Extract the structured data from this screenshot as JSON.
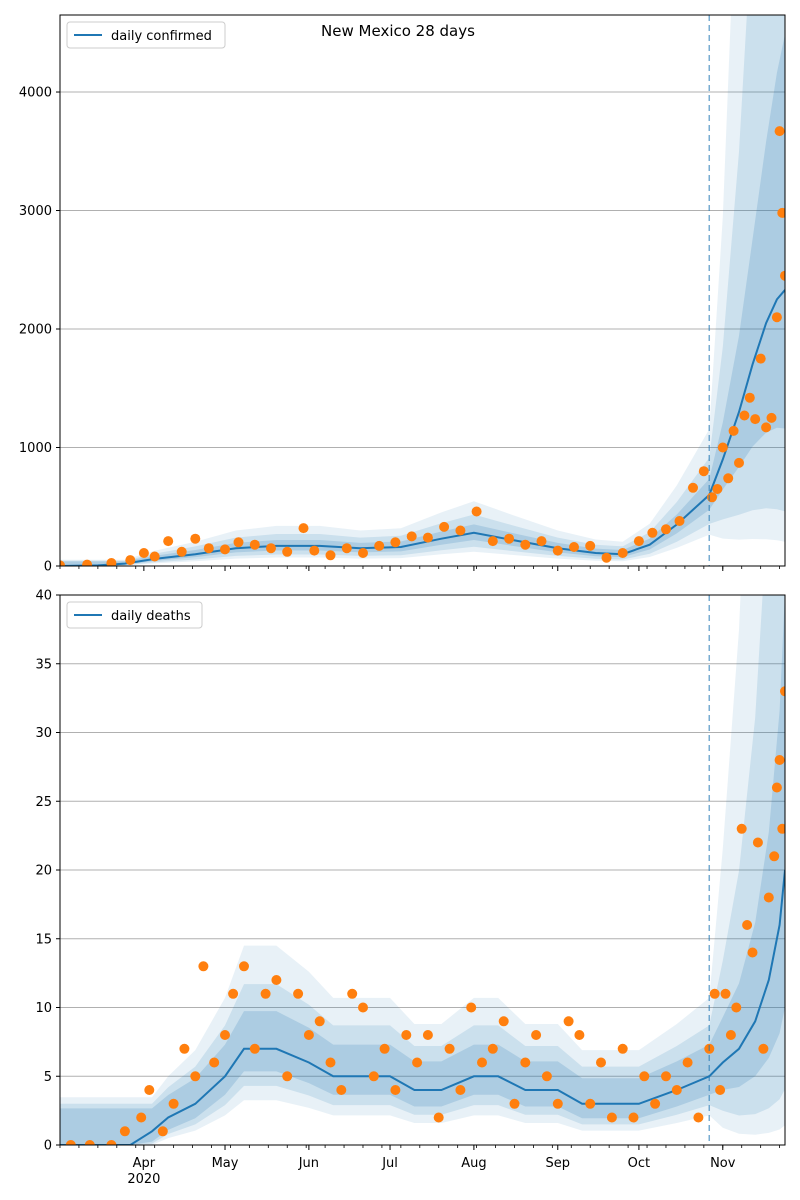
{
  "figure": {
    "title": "New Mexico 28 days"
  },
  "colors": {
    "model": "#1f77b4",
    "observed": "#ff7f0e",
    "band": "#1f77b4",
    "grid": "#b0b0b0",
    "cutoff": "#1f77b4"
  },
  "chart_data": [
    {
      "type": "line",
      "id": "confirmed",
      "title": "New Mexico 28 days",
      "legend": [
        "daily confirmed"
      ],
      "legend_position": "top-left",
      "xlabel": "",
      "ylabel": "",
      "ylim": [
        0,
        4650
      ],
      "yticks": [
        0,
        1000,
        2000,
        3000,
        4000
      ],
      "grid": "y",
      "x_start": "2020-03-01",
      "x_end": "2020-11-24",
      "forecast_cutoff": "2020-10-27",
      "series": [
        {
          "name": "daily confirmed",
          "role": "model",
          "x": [
            "2020-03-01",
            "2020-03-15",
            "2020-03-25",
            "2020-04-05",
            "2020-04-20",
            "2020-05-05",
            "2020-05-20",
            "2020-06-05",
            "2020-06-20",
            "2020-07-05",
            "2020-07-20",
            "2020-08-01",
            "2020-08-15",
            "2020-09-01",
            "2020-09-15",
            "2020-09-25",
            "2020-10-05",
            "2020-10-15",
            "2020-10-27",
            "2020-11-01",
            "2020-11-07",
            "2020-11-12",
            "2020-11-17",
            "2020-11-21",
            "2020-11-24"
          ],
          "values": [
            0,
            5,
            20,
            60,
            100,
            150,
            170,
            170,
            150,
            160,
            230,
            280,
            220,
            150,
            110,
            100,
            180,
            350,
            600,
            900,
            1300,
            1700,
            2050,
            2250,
            2330
          ]
        },
        {
          "role": "observed",
          "x": [
            "2020-03-01",
            "2020-03-11",
            "2020-03-20",
            "2020-03-27",
            "2020-04-01",
            "2020-04-05",
            "2020-04-10",
            "2020-04-15",
            "2020-04-20",
            "2020-04-25",
            "2020-05-01",
            "2020-05-06",
            "2020-05-12",
            "2020-05-18",
            "2020-05-24",
            "2020-05-30",
            "2020-06-03",
            "2020-06-09",
            "2020-06-15",
            "2020-06-21",
            "2020-06-27",
            "2020-07-03",
            "2020-07-09",
            "2020-07-15",
            "2020-07-21",
            "2020-07-27",
            "2020-08-02",
            "2020-08-08",
            "2020-08-14",
            "2020-08-20",
            "2020-08-26",
            "2020-09-01",
            "2020-09-07",
            "2020-09-13",
            "2020-09-19",
            "2020-09-25",
            "2020-10-01",
            "2020-10-06",
            "2020-10-11",
            "2020-10-16",
            "2020-10-21",
            "2020-10-25",
            "2020-10-28",
            "2020-10-30",
            "2020-11-01",
            "2020-11-03",
            "2020-11-05",
            "2020-11-07",
            "2020-11-09",
            "2020-11-11",
            "2020-11-13",
            "2020-11-15",
            "2020-11-17",
            "2020-11-19",
            "2020-11-21",
            "2020-11-22",
            "2020-11-23",
            "2020-11-24"
          ],
          "values": [
            5,
            12,
            25,
            50,
            110,
            80,
            210,
            120,
            230,
            150,
            140,
            200,
            180,
            150,
            120,
            320,
            130,
            90,
            150,
            110,
            170,
            200,
            250,
            240,
            330,
            300,
            460,
            210,
            230,
            180,
            210,
            130,
            160,
            170,
            70,
            110,
            210,
            280,
            310,
            380,
            660,
            800,
            580,
            650,
            1000,
            740,
            1140,
            870,
            1270,
            1420,
            1240,
            1750,
            1170,
            1250,
            2100,
            3670,
            2980,
            2450
          ]
        }
      ]
    },
    {
      "type": "line",
      "id": "deaths",
      "legend": [
        "daily deaths"
      ],
      "legend_position": "top-left",
      "xlabel": "",
      "ylabel": "",
      "ylim": [
        0,
        40
      ],
      "yticks": [
        0,
        5,
        10,
        15,
        20,
        25,
        30,
        35,
        40
      ],
      "grid": "y",
      "x_start": "2020-03-01",
      "x_end": "2020-11-24",
      "forecast_cutoff": "2020-10-27",
      "xticks": [
        "Apr",
        "May",
        "Jun",
        "Jul",
        "Aug",
        "Sep",
        "Oct",
        "Nov"
      ],
      "xtick_dates": [
        "2020-04-01",
        "2020-05-01",
        "2020-06-01",
        "2020-07-01",
        "2020-08-01",
        "2020-09-01",
        "2020-10-01",
        "2020-11-01"
      ],
      "x_year_label": "2020",
      "series": [
        {
          "name": "daily deaths",
          "role": "model",
          "x": [
            "2020-03-01",
            "2020-03-27",
            "2020-04-04",
            "2020-04-10",
            "2020-04-20",
            "2020-05-01",
            "2020-05-08",
            "2020-05-20",
            "2020-06-01",
            "2020-06-10",
            "2020-06-20",
            "2020-07-01",
            "2020-07-10",
            "2020-07-20",
            "2020-08-01",
            "2020-08-10",
            "2020-08-20",
            "2020-09-01",
            "2020-09-10",
            "2020-09-20",
            "2020-10-01",
            "2020-10-15",
            "2020-10-27",
            "2020-11-01",
            "2020-11-07",
            "2020-11-13",
            "2020-11-18",
            "2020-11-22",
            "2020-11-24"
          ],
          "values": [
            0,
            0,
            1,
            2,
            3,
            5,
            7,
            7,
            6,
            5,
            5,
            5,
            4,
            4,
            5,
            5,
            4,
            4,
            3,
            3,
            3,
            4,
            5,
            6,
            7,
            9,
            12,
            16,
            20
          ]
        },
        {
          "role": "observed",
          "x": [
            "2020-03-05",
            "2020-03-12",
            "2020-03-20",
            "2020-03-25",
            "2020-03-31",
            "2020-04-03",
            "2020-04-08",
            "2020-04-12",
            "2020-04-16",
            "2020-04-20",
            "2020-04-23",
            "2020-04-27",
            "2020-05-01",
            "2020-05-04",
            "2020-05-08",
            "2020-05-12",
            "2020-05-16",
            "2020-05-20",
            "2020-05-24",
            "2020-05-28",
            "2020-06-01",
            "2020-06-05",
            "2020-06-09",
            "2020-06-13",
            "2020-06-17",
            "2020-06-21",
            "2020-06-25",
            "2020-06-29",
            "2020-07-03",
            "2020-07-07",
            "2020-07-11",
            "2020-07-15",
            "2020-07-19",
            "2020-07-23",
            "2020-07-27",
            "2020-07-31",
            "2020-08-04",
            "2020-08-08",
            "2020-08-12",
            "2020-08-16",
            "2020-08-20",
            "2020-08-24",
            "2020-08-28",
            "2020-09-01",
            "2020-09-05",
            "2020-09-09",
            "2020-09-13",
            "2020-09-17",
            "2020-09-21",
            "2020-09-25",
            "2020-09-29",
            "2020-10-03",
            "2020-10-07",
            "2020-10-11",
            "2020-10-15",
            "2020-10-19",
            "2020-10-23",
            "2020-10-27",
            "2020-10-29",
            "2020-10-31",
            "2020-11-02",
            "2020-11-04",
            "2020-11-06",
            "2020-11-08",
            "2020-11-10",
            "2020-11-12",
            "2020-11-14",
            "2020-11-16",
            "2020-11-18",
            "2020-11-20",
            "2020-11-21",
            "2020-11-22",
            "2020-11-23",
            "2020-11-24"
          ],
          "values": [
            0,
            0,
            0,
            1,
            2,
            4,
            1,
            3,
            7,
            5,
            13,
            6,
            8,
            11,
            13,
            7,
            11,
            12,
            5,
            11,
            8,
            9,
            6,
            4,
            11,
            10,
            5,
            7,
            4,
            8,
            6,
            8,
            2,
            7,
            4,
            10,
            6,
            7,
            9,
            3,
            6,
            8,
            5,
            3,
            9,
            8,
            3,
            6,
            2,
            7,
            2,
            5,
            3,
            5,
            4,
            6,
            2,
            7,
            11,
            4,
            11,
            8,
            10,
            23,
            16,
            14,
            22,
            7,
            18,
            21,
            26,
            28,
            23,
            33
          ]
        }
      ]
    }
  ]
}
